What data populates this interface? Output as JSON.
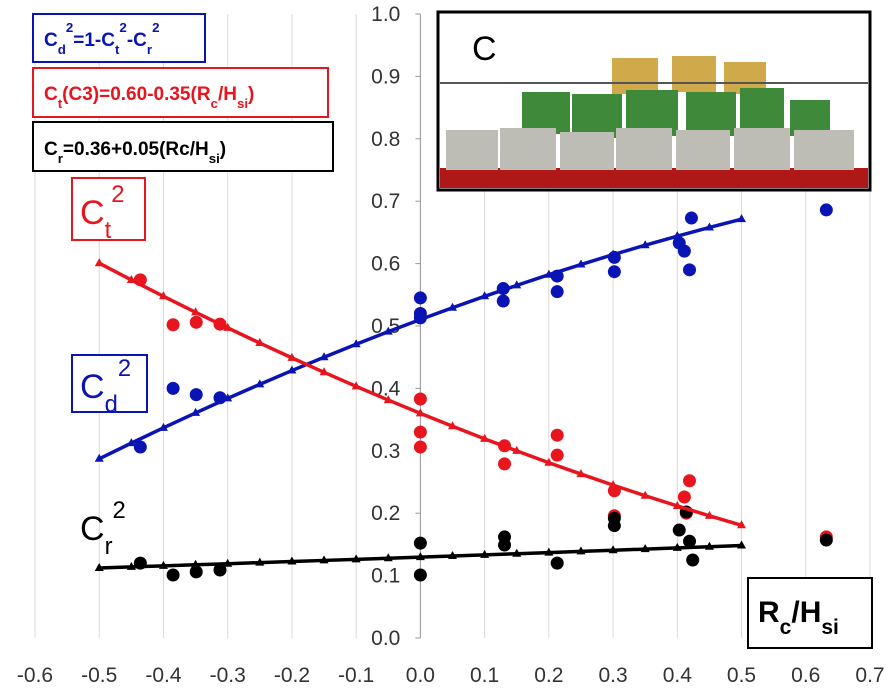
{
  "chart_data": {
    "type": "scatter",
    "xlim": [
      -0.6,
      0.7
    ],
    "xticks": [
      -0.6,
      -0.5,
      -0.4,
      -0.3,
      -0.2,
      -0.1,
      {
        "value": 0,
        "label": "0.0"
      },
      0.1,
      0.2,
      0.3,
      0.4,
      0.5,
      0.6,
      0.7
    ],
    "ylim": [
      0,
      1
    ],
    "yticks": [
      {
        "value": 0,
        "label": "0.0"
      },
      0.1,
      0.2,
      0.3,
      0.4,
      0.5,
      0.6,
      0.7,
      0.8,
      0.9,
      {
        "value": 1,
        "label": "1.0"
      }
    ],
    "grid": true,
    "series": [
      {
        "color": "#0a14b4",
        "x": [
          -0.436,
          -0.385,
          -0.349,
          -0.312,
          0,
          0,
          0,
          0.129,
          0.129,
          0.213,
          0.213,
          0.302,
          0.302,
          0.403,
          0.411,
          0.422,
          0.419,
          0.632
        ],
        "values": [
          0.306,
          0.4,
          0.39,
          0.385,
          0.545,
          0.52,
          0.513,
          0.56,
          0.54,
          0.58,
          0.555,
          0.61,
          0.587,
          0.633,
          0.62,
          0.673,
          0.59,
          0.686
        ]
      },
      {
        "color": "#e8141e",
        "x": [
          -0.436,
          -0.385,
          -0.349,
          -0.312,
          0,
          0,
          0,
          0.131,
          0.131,
          0.213,
          0.213,
          0.302,
          0.302,
          0.411,
          0.419,
          0.414,
          0.632
        ],
        "values": [
          0.574,
          0.502,
          0.506,
          0.503,
          0.383,
          0.33,
          0.306,
          0.308,
          0.279,
          0.325,
          0.293,
          0.236,
          0.196,
          0.226,
          0.252,
          0.2,
          0.162
        ]
      },
      {
        "color": "#000000",
        "x": [
          -0.436,
          -0.385,
          -0.349,
          -0.312,
          0,
          0,
          0.131,
          0.131,
          0.213,
          0.302,
          0.302,
          0.403,
          0.414,
          0.419,
          0.424,
          0.632
        ],
        "values": [
          0.12,
          0.101,
          0.106,
          0.109,
          0.152,
          0.101,
          0.162,
          0.149,
          0.12,
          0.192,
          0.18,
          0.173,
          0.202,
          0.155,
          0.125,
          0.157
        ]
      },
      {
        "color": "#0a14b4",
        "line": true,
        "x": [
          -0.5,
          -0.45,
          -0.4,
          -0.35,
          -0.3,
          -0.25,
          -0.2,
          -0.15,
          -0.1,
          -0.05,
          0,
          0.05,
          0.1,
          0.15,
          0.2,
          0.25,
          0.3,
          0.35,
          0.4,
          0.45,
          0.5
        ],
        "values": [
          0.2872,
          0.3123,
          0.3368,
          0.3607,
          0.384,
          0.4065,
          0.4286,
          0.4499,
          0.4708,
          0.4909,
          0.5104,
          0.5293,
          0.5476,
          0.5651,
          0.5822,
          0.5985,
          0.6144,
          0.6295,
          0.644,
          0.6579,
          0.6712
        ]
      },
      {
        "color": "#e8141e",
        "line": true,
        "x": [
          -0.5,
          -0.45,
          -0.4,
          -0.35,
          -0.3,
          -0.25,
          -0.2,
          -0.15,
          -0.1,
          -0.05,
          0,
          0.05,
          0.1,
          0.15,
          0.2,
          0.25,
          0.3,
          0.35,
          0.4,
          0.45,
          0.5
        ],
        "values": [
          0.6006,
          0.5738,
          0.5476,
          0.522,
          0.497,
          0.4727,
          0.4489,
          0.4258,
          0.4032,
          0.3813,
          0.36,
          0.3393,
          0.3192,
          0.2998,
          0.2809,
          0.2627,
          0.245,
          0.228,
          0.2116,
          0.1958,
          0.1806
        ]
      },
      {
        "color": "#000000",
        "line": true,
        "x": [
          -0.5,
          -0.45,
          -0.4,
          -0.35,
          -0.3,
          -0.25,
          -0.2,
          -0.15,
          -0.1,
          -0.05,
          0,
          0.05,
          0.1,
          0.15,
          0.2,
          0.25,
          0.3,
          0.35,
          0.4,
          0.45,
          0.5
        ],
        "values": [
          0.1122,
          0.1139,
          0.1156,
          0.1173,
          0.119,
          0.1208,
          0.1225,
          0.1243,
          0.126,
          0.1278,
          0.1296,
          0.1314,
          0.1332,
          0.1351,
          0.1369,
          0.1388,
          0.1406,
          0.1425,
          0.1444,
          0.1463,
          0.1482
        ]
      }
    ],
    "annotations": [
      [
        "C",
        "d",
        "2",
        "=1-C",
        "t",
        "2",
        "-C",
        "r",
        "2"
      ],
      [
        "C",
        "t",
        "(C3)=0.60-0.35(R",
        "c",
        "/H",
        "si",
        ")"
      ],
      [
        "C",
        "r",
        "=0.36+0.05(Rc/H",
        "si",
        ")"
      ],
      [
        "C",
        "t",
        "2"
      ],
      [
        "C",
        "d",
        "2"
      ],
      [
        "C",
        "r",
        "2"
      ],
      [
        "R",
        "c",
        "/H",
        "si"
      ],
      [
        "C"
      ]
    ]
  }
}
